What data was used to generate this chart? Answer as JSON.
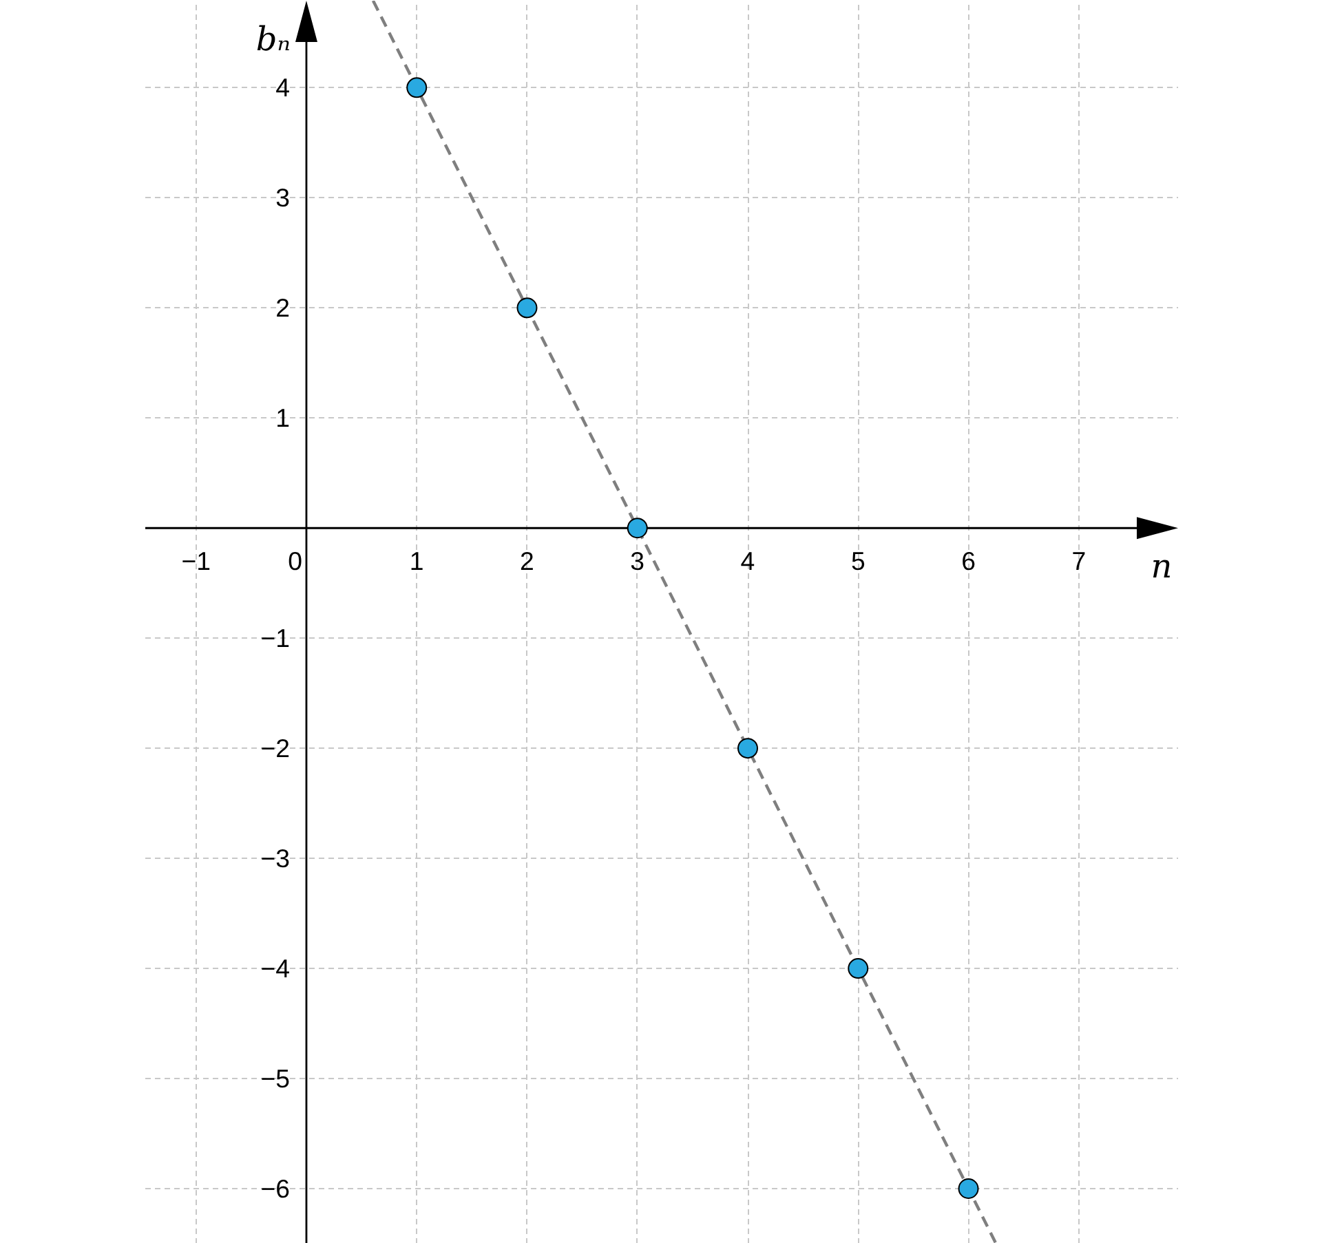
{
  "chart_data": {
    "type": "scatter",
    "xlabel": "n",
    "ylabel": "bₙ",
    "xlim": [
      -1.46,
      7.9
    ],
    "ylim": [
      -6.5,
      4.79
    ],
    "xticks": [
      -1,
      0,
      1,
      2,
      3,
      4,
      5,
      6,
      7
    ],
    "yticks": [
      -6,
      -5,
      -4,
      -3,
      -2,
      -1,
      1,
      2,
      3,
      4
    ],
    "grid": true,
    "marker": "circle",
    "series": [
      {
        "type": "line",
        "color": "#7f7f7f",
        "line_style": "dashed",
        "marker": "none",
        "x": [
          0.605,
          6.25
        ],
        "values": [
          4.79,
          -6.5
        ]
      },
      {
        "color": "#29a9e1",
        "x": [
          1,
          2,
          3,
          4,
          5,
          6
        ],
        "values": [
          4,
          2,
          0,
          -2,
          -4,
          -6
        ]
      }
    ]
  }
}
